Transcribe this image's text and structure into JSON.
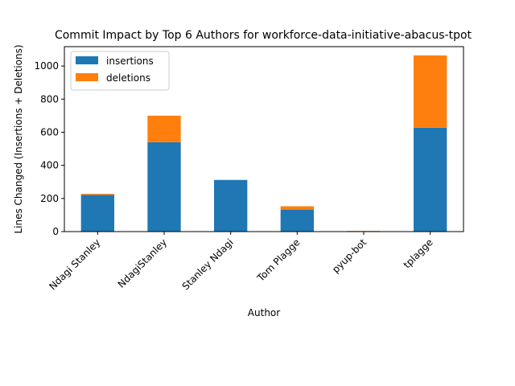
{
  "chart_data": {
    "type": "bar",
    "stacked": true,
    "title": "Commit Impact by Top 6 Authors for workforce-data-initiative-abacus-tpot",
    "xlabel": "Author",
    "ylabel": "Lines Changed (Insertions + Deletions)",
    "categories": [
      "Ndagi Stanley",
      "NdagiStanley",
      "Stanley Ndagi",
      "Tom Plagge",
      "pyup-bot",
      "tplagge"
    ],
    "series": [
      {
        "name": "insertions",
        "color": "#1f77b4",
        "values": [
          222,
          540,
          312,
          133,
          2,
          627
        ]
      },
      {
        "name": "deletions",
        "color": "#ff7f0e",
        "values": [
          6,
          160,
          0,
          20,
          2,
          437
        ]
      }
    ],
    "ylim": [
      0,
      1117
    ],
    "yticks": [
      0,
      200,
      400,
      600,
      800,
      1000
    ],
    "grid": false,
    "legend_position": "top-left"
  }
}
